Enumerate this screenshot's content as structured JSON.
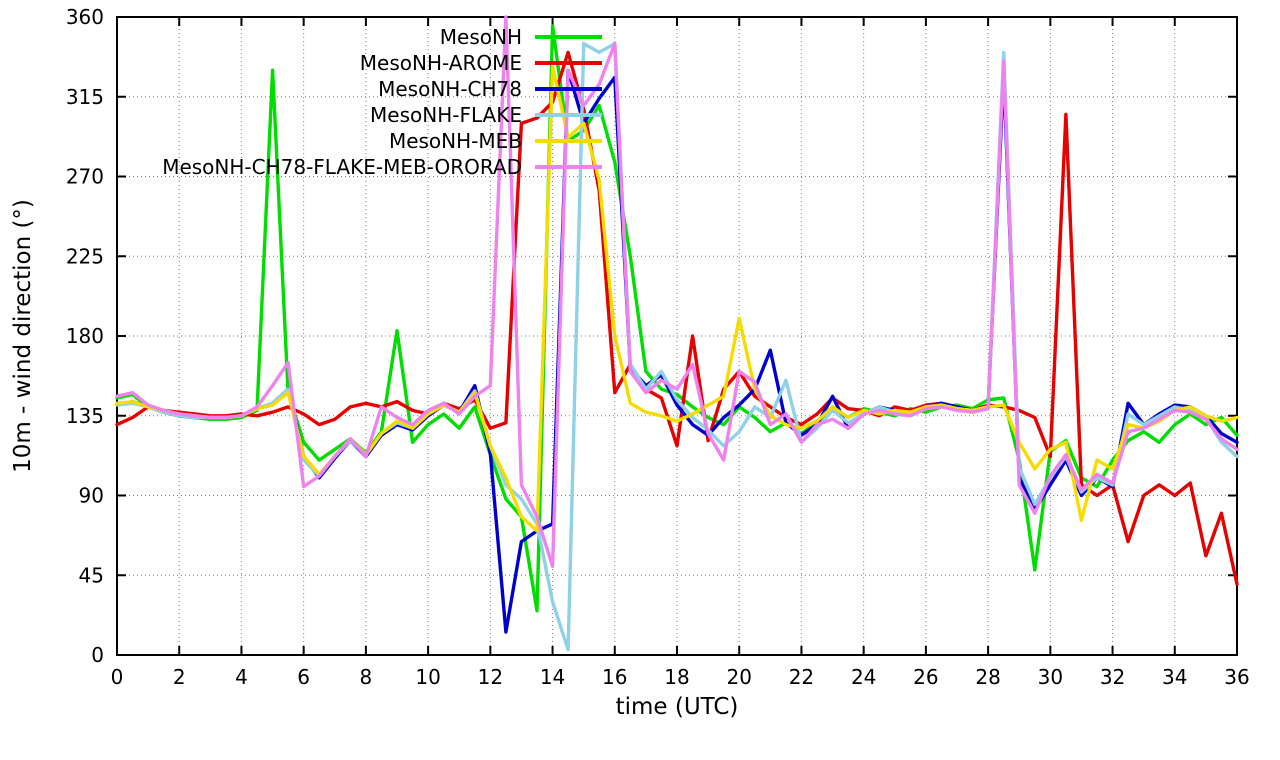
{
  "page": {
    "background": "#ffffff"
  },
  "chart_data": {
    "type": "line",
    "title": "",
    "xlabel": "time (UTC)",
    "ylabel": "10m - wind direction (°)",
    "xlim": [
      0,
      36
    ],
    "ylim": [
      0,
      360
    ],
    "xtick_step": 2,
    "ytick_step": 45,
    "grid": true,
    "grid_style": "dotted",
    "legend_position": "top-center-inside",
    "axis_color": "#000000",
    "grid_color": "#7f7f7f",
    "x": [
      0,
      0.5,
      1,
      1.5,
      2,
      2.5,
      3,
      3.5,
      4,
      4.5,
      5,
      5.5,
      6,
      6.5,
      7,
      7.5,
      8,
      8.5,
      9,
      9.5,
      10,
      10.5,
      11,
      11.5,
      12,
      12.5,
      13,
      13.5,
      14,
      14.5,
      15,
      15.5,
      16,
      16.5,
      17,
      17.5,
      18,
      18.5,
      19,
      19.5,
      20,
      20.5,
      21,
      21.5,
      22,
      22.5,
      23,
      23.5,
      24,
      24.5,
      25,
      25.5,
      26,
      26.5,
      27,
      27.5,
      28,
      28.5,
      29,
      29.5,
      30,
      30.5,
      31,
      31.5,
      32,
      32.5,
      33,
      33.5,
      34,
      34.5,
      35,
      35.5,
      36
    ],
    "series": [
      {
        "name": "MesoNH",
        "color": "#00dd00",
        "values": [
          145,
          147,
          140,
          137,
          135,
          134,
          133,
          133,
          134,
          138,
          330,
          148,
          120,
          110,
          116,
          122,
          114,
          126,
          183,
          120,
          130,
          136,
          128,
          140,
          113,
          88,
          78,
          25,
          355,
          290,
          296,
          310,
          278,
          225,
          160,
          150,
          147,
          140,
          134,
          130,
          140,
          134,
          126,
          131,
          125,
          131,
          140,
          134,
          139,
          137,
          135,
          139,
          137,
          140,
          141,
          139,
          144,
          145,
          110,
          48,
          115,
          121,
          100,
          95,
          110,
          121,
          126,
          120,
          130,
          136,
          130,
          134,
          124
        ]
      },
      {
        "name": "MesoNH-AROME",
        "color": "#e60000",
        "values": [
          130,
          134,
          140,
          138,
          137,
          136,
          135,
          135,
          136,
          135,
          137,
          140,
          136,
          130,
          133,
          140,
          142,
          140,
          143,
          138,
          136,
          142,
          139,
          144,
          128,
          131,
          300,
          303,
          312,
          340,
          308,
          262,
          148,
          164,
          150,
          145,
          118,
          180,
          121,
          150,
          160,
          146,
          140,
          134,
          130,
          136,
          145,
          139,
          138,
          135,
          140,
          138,
          141,
          142,
          140,
          138,
          141,
          140,
          138,
          134,
          112,
          305,
          96,
          90,
          96,
          64,
          90,
          96,
          90,
          97,
          56,
          80,
          40
        ]
      },
      {
        "name": "MesoNH-CH78",
        "color": "#0000cc",
        "values": [
          141,
          143,
          140,
          137,
          135,
          134,
          134,
          134,
          135,
          139,
          142,
          150,
          112,
          100,
          111,
          121,
          112,
          124,
          130,
          127,
          135,
          141,
          137,
          152,
          114,
          13,
          64,
          70,
          74,
          330,
          300,
          314,
          326,
          162,
          152,
          158,
          141,
          130,
          124,
          134,
          141,
          150,
          172,
          131,
          124,
          130,
          146,
          128,
          136,
          140,
          138,
          136,
          140,
          142,
          140,
          138,
          140,
          328,
          100,
          82,
          96,
          110,
          90,
          100,
          95,
          142,
          130,
          136,
          141,
          140,
          135,
          125,
          120
        ]
      },
      {
        "name": "MesoNH-FLAKE",
        "color": "#8fd1e7",
        "values": [
          141,
          142,
          140,
          137,
          135,
          134,
          134,
          134,
          135,
          139,
          142,
          150,
          110,
          101,
          112,
          121,
          113,
          125,
          131,
          128,
          136,
          141,
          137,
          149,
          118,
          96,
          88,
          74,
          30,
          3,
          345,
          340,
          345,
          164,
          150,
          160,
          144,
          134,
          127,
          118,
          126,
          140,
          134,
          155,
          120,
          128,
          138,
          131,
          136,
          140,
          137,
          136,
          140,
          141,
          139,
          138,
          140,
          340,
          106,
          85,
          100,
          112,
          92,
          100,
          96,
          136,
          130,
          135,
          140,
          138,
          134,
          120,
          112
        ]
      },
      {
        "name": "MesoNH-MEB",
        "color": "#f5dc00",
        "values": [
          142,
          143,
          140,
          138,
          136,
          135,
          134,
          134,
          135,
          139,
          141,
          148,
          112,
          102,
          112,
          122,
          113,
          125,
          132,
          128,
          136,
          141,
          137,
          148,
          118,
          100,
          78,
          70,
          332,
          292,
          300,
          268,
          180,
          142,
          137,
          135,
          132,
          136,
          141,
          146,
          190,
          150,
          135,
          130,
          128,
          132,
          140,
          134,
          138,
          136,
          138,
          137,
          140,
          141,
          139,
          138,
          140,
          141,
          120,
          105,
          116,
          120,
          76,
          110,
          105,
          130,
          128,
          132,
          138,
          140,
          135,
          132,
          134
        ]
      },
      {
        "name": "MesoNH-CH78-FLAKE-MEB-ORORAD",
        "color": "#ee82ee",
        "values": [
          146,
          148,
          141,
          138,
          136,
          135,
          134,
          134,
          135,
          140,
          152,
          165,
          95,
          101,
          112,
          122,
          112,
          140,
          134,
          130,
          138,
          142,
          136,
          146,
          152,
          360,
          96,
          78,
          50,
          330,
          310,
          322,
          345,
          160,
          148,
          155,
          150,
          164,
          125,
          110,
          160,
          154,
          130,
          136,
          120,
          130,
          133,
          128,
          136,
          138,
          136,
          135,
          139,
          140,
          138,
          137,
          139,
          335,
          96,
          80,
          101,
          113,
          93,
          102,
          97,
          126,
          128,
          133,
          138,
          137,
          133,
          122,
          116
        ]
      }
    ]
  }
}
